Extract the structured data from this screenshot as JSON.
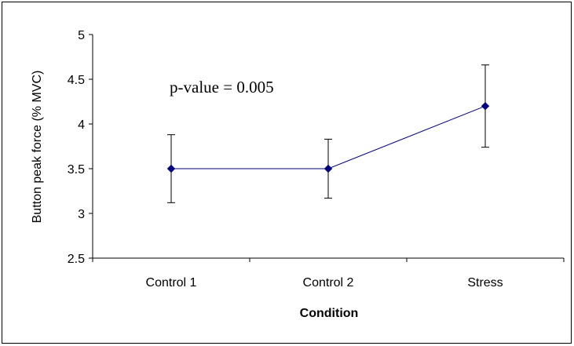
{
  "chart_data": {
    "type": "line",
    "xlabel": "Condition",
    "ylabel": "Button peak force (% MVC)",
    "categories": [
      "Control 1",
      "Control 2",
      "Stress"
    ],
    "series": [
      {
        "values": [
          3.5,
          3.5,
          4.2
        ],
        "error_upper": [
          3.88,
          3.83,
          4.66
        ],
        "error_lower": [
          3.12,
          3.17,
          3.74
        ],
        "color": "#00007f"
      }
    ],
    "ylim": [
      2.5,
      5
    ],
    "yticks": [
      2.5,
      3,
      3.5,
      4,
      4.5,
      5
    ],
    "ytick_labels": [
      "2.5",
      "3",
      "3.5",
      "4",
      "4.5",
      "5"
    ],
    "annotation": "p-value = 0.005",
    "grid": false,
    "legend": "none"
  }
}
